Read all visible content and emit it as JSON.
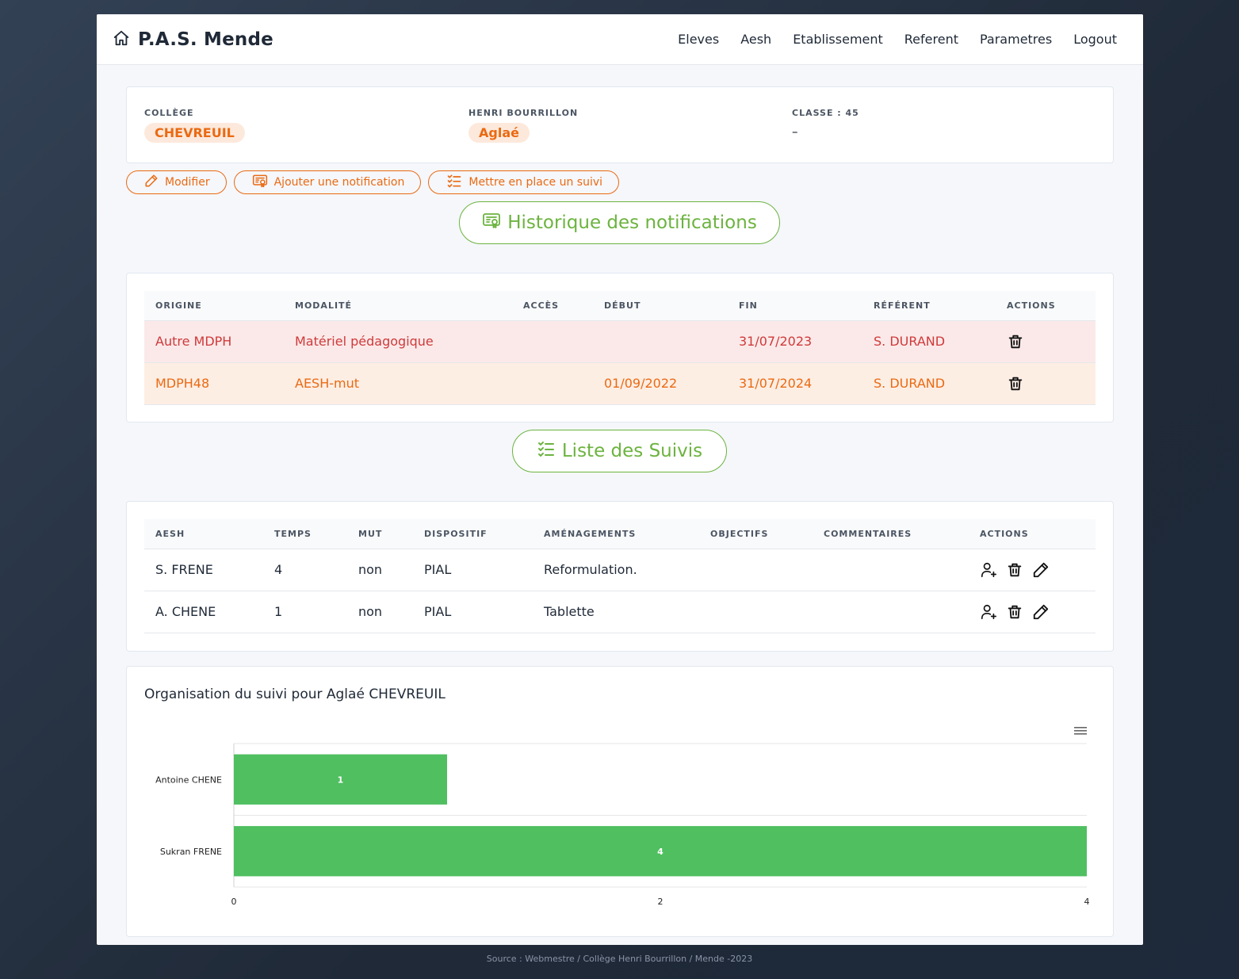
{
  "app": {
    "title": "P.A.S. Mende"
  },
  "nav": [
    "Eleves",
    "Aesh",
    "Etablissement",
    "Referent",
    "Parametres",
    "Logout"
  ],
  "student": {
    "college_label": "COLLÈGE",
    "lastname": "CHEVREUIL",
    "school_label": "HENRI BOURRILLON",
    "firstname": "Aglaé",
    "class_label": "CLASSE : 45",
    "class_value": "–"
  },
  "actions": {
    "edit": "Modifier",
    "add_notification": "Ajouter une notification",
    "add_followup": "Mettre en place un suivi"
  },
  "notifications": {
    "history_button": "Historique des notifications",
    "headers": [
      "ORIGINE",
      "MODALITÉ",
      "ACCÈS",
      "DÉBUT",
      "FIN",
      "RÉFÉRENT",
      "ACTIONS"
    ],
    "rows": [
      {
        "origine": "Autre MDPH",
        "modalite": "Matériel pédagogique",
        "acces": "",
        "debut": "",
        "fin": "31/07/2023",
        "referent": "S. DURAND",
        "status": "red"
      },
      {
        "origine": "MDPH48",
        "modalite": "AESH-mut",
        "acces": "",
        "debut": "01/09/2022",
        "fin": "31/07/2024",
        "referent": "S. DURAND",
        "status": "orange"
      }
    ]
  },
  "suivis": {
    "list_button": "Liste des Suivis",
    "headers": [
      "AESH",
      "TEMPS",
      "MUT",
      "DISPOSITIF",
      "AMÉNAGEMENTS",
      "OBJECTIFS",
      "COMMENTAIRES",
      "ACTIONS"
    ],
    "rows": [
      {
        "aesh": "S. FRENE",
        "temps": "4",
        "mut": "non",
        "dispositif": "PIAL",
        "amenagements": "Reformulation.",
        "objectifs": "",
        "commentaires": ""
      },
      {
        "aesh": "A. CHENE",
        "temps": "1",
        "mut": "non",
        "dispositif": "PIAL",
        "amenagements": "Tablette",
        "objectifs": "",
        "commentaires": ""
      }
    ]
  },
  "chart_data": {
    "type": "bar",
    "orientation": "horizontal",
    "title": "Organisation du suivi pour Aglaé CHEVREUIL",
    "categories": [
      "Antoine CHENE",
      "Sukran FRENE"
    ],
    "values": [
      1,
      4
    ],
    "xlim": [
      0,
      4
    ],
    "xticks": [
      0,
      2,
      4
    ],
    "bar_color": "#4fbf60",
    "data_labels": true
  },
  "footer": "Source : Webmestre / Collège Henri Bourrillon / Mende -2023",
  "colors": {
    "accent": "#ea6a12",
    "green": "#6cb33f"
  }
}
